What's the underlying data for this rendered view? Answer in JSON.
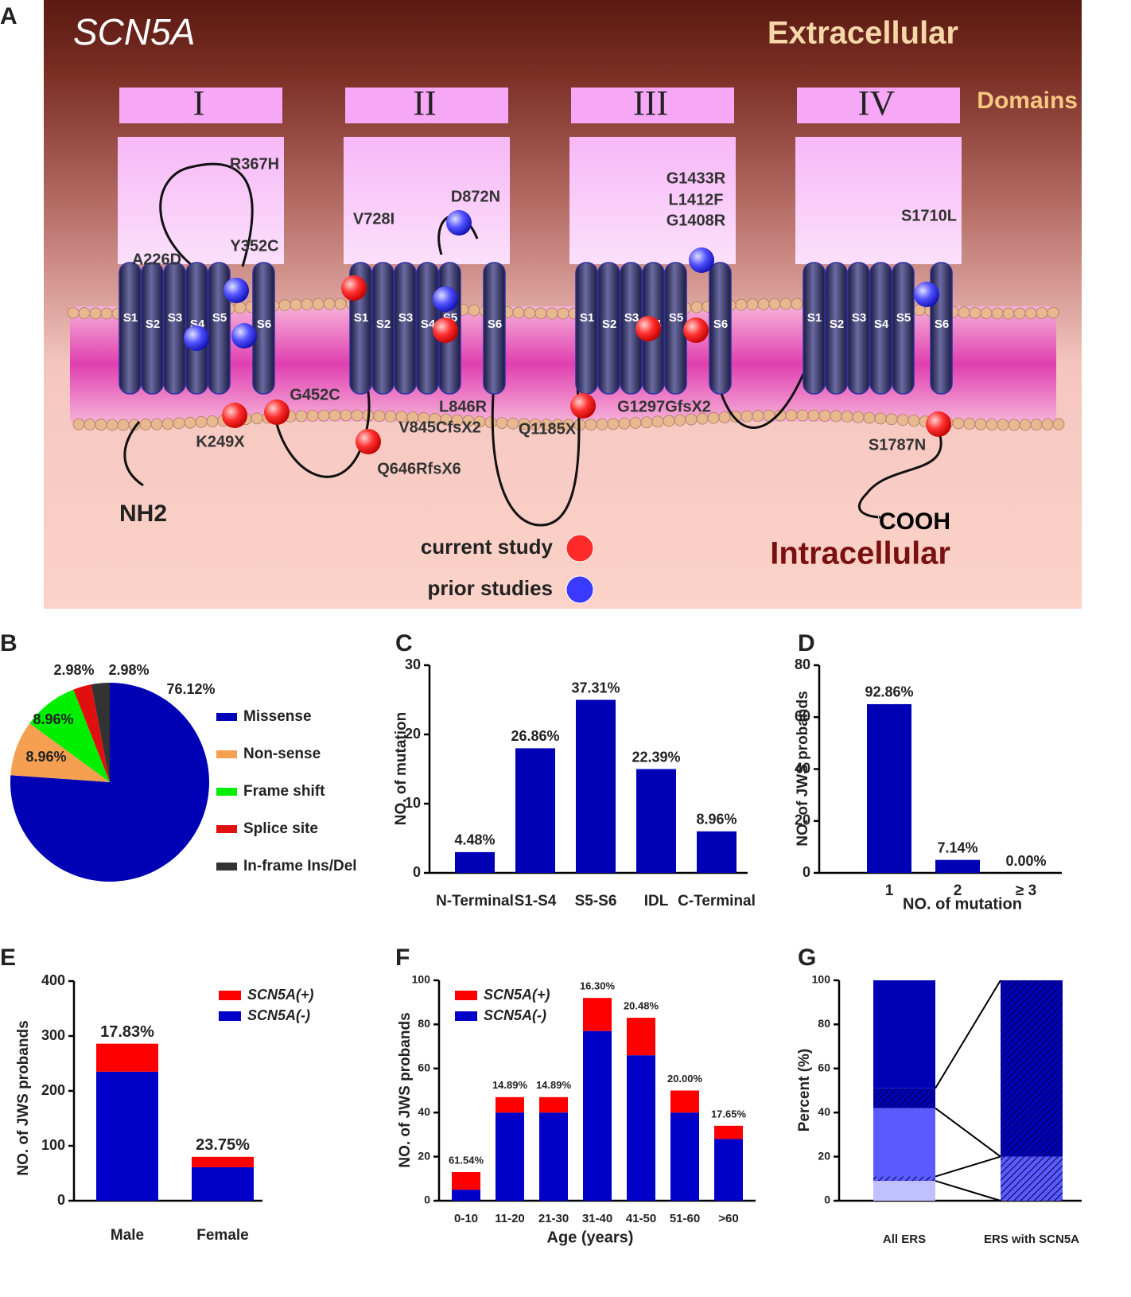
{
  "diagram": {
    "panel": "A",
    "title": "SCN5A",
    "extracellular": "Extracellular",
    "intracellular": "Intracellular",
    "domains_label": "Domains",
    "domains": [
      "I",
      "II",
      "III",
      "IV"
    ],
    "segments": [
      "S1",
      "S2",
      "S3",
      "S4",
      "S5",
      "S6"
    ],
    "n_terminus": "NH2",
    "c_terminus": "COOH",
    "mutations": [
      "R367H",
      "Y352C",
      "A226D",
      "K249X",
      "G452C",
      "V728I",
      "D872N",
      "L846R",
      "V845CfsX2",
      "Q646RfsX6",
      "Q1185X",
      "G1297GfsX2",
      "G1433R",
      "L1412F",
      "G1408R",
      "S1710L",
      "S1787N"
    ],
    "legend": [
      {
        "name": "current study",
        "color": "#ff2a2a"
      },
      {
        "name": "prior studies",
        "color": "#3a3aff"
      }
    ]
  },
  "chart_data": [
    {
      "type": "pie",
      "panel": "B",
      "categories": [
        "Missense",
        "Non-sense",
        "Frame shift",
        "Splice site",
        "In-frame Ins/Del"
      ],
      "values": [
        76.12,
        8.96,
        8.96,
        2.98,
        2.98
      ],
      "value_labels": [
        "76.12%",
        "8.96%",
        "8.96%",
        "2.98%",
        "2.98%"
      ],
      "colors": [
        "#0000b4",
        "#f5a050",
        "#00ee00",
        "#e01010",
        "#333333"
      ]
    },
    {
      "type": "bar",
      "panel": "C",
      "ylabel": "NO. of mutation",
      "categories": [
        "N-Terminal",
        "S1-S4",
        "S5-S6",
        "IDL",
        "C-Terminal"
      ],
      "values": [
        3,
        18,
        25,
        15,
        6
      ],
      "annotations": [
        "4.48%",
        "26.86%",
        "37.31%",
        "22.39%",
        "8.96%"
      ],
      "color": "#0000b4",
      "ylim": [
        0,
        30
      ],
      "yticks": [
        0,
        10,
        20,
        30
      ]
    },
    {
      "type": "bar",
      "panel": "D",
      "ylabel": "NO. of JWS probands",
      "xlabel": "NO. of mutation",
      "categories": [
        "1",
        "2",
        "≥ 3"
      ],
      "values": [
        65,
        5,
        0
      ],
      "annotations": [
        "92.86%",
        "7.14%",
        "0.00%"
      ],
      "color": "#0000b4",
      "ylim": [
        0,
        80
      ],
      "yticks": [
        0,
        20,
        40,
        60,
        80
      ]
    },
    {
      "type": "stacked_bar",
      "panel": "E",
      "ylabel": "NO. of JWS probands",
      "categories": [
        "Male",
        "Female"
      ],
      "series": [
        {
          "name": "SCN5A(-)",
          "color": "#0000c8",
          "values": [
            235,
            61
          ]
        },
        {
          "name": "SCN5A(+)",
          "color": "#ff0000",
          "values": [
            51,
            19
          ]
        }
      ],
      "annotations": [
        "17.83%",
        "23.75%"
      ],
      "ylim": [
        0,
        400
      ],
      "yticks": [
        0,
        100,
        200,
        300,
        400
      ]
    },
    {
      "type": "stacked_bar",
      "panel": "F",
      "ylabel": "NO. of JWS probands",
      "xlabel": "Age (years)",
      "categories": [
        "0-10",
        "11-20",
        "21-30",
        "31-40",
        "41-50",
        "51-60",
        ">60"
      ],
      "series": [
        {
          "name": "SCN5A(-)",
          "color": "#0000c8",
          "values": [
            5,
            40,
            40,
            77,
            66,
            40,
            28
          ]
        },
        {
          "name": "SCN5A(+)",
          "color": "#ff0000",
          "values": [
            8,
            7,
            7,
            15,
            17,
            10,
            6
          ]
        }
      ],
      "annotations": [
        "61.54%",
        "14.89%",
        "14.89%",
        "16.30%",
        "20.48%",
        "20.00%",
        "17.65%"
      ],
      "ylim": [
        0,
        100
      ],
      "yticks": [
        0,
        20,
        40,
        60,
        80,
        100
      ]
    },
    {
      "type": "stacked_bar",
      "panel": "G",
      "ylabel": "Percent (%)",
      "categories": [
        "All ERS",
        "ERS with SCN5A"
      ],
      "series": [
        {
          "color": "#c0c0ff",
          "values": [
            9,
            0
          ]
        },
        {
          "color": "#5a5aff",
          "hatch": true,
          "values": [
            2,
            20
          ]
        },
        {
          "color": "#5a5aff",
          "values": [
            31,
            0
          ]
        },
        {
          "color": "#0000b4",
          "hatch": true,
          "values": [
            9,
            80
          ]
        },
        {
          "color": "#0000b4",
          "values": [
            49,
            0
          ]
        }
      ],
      "connectors": true,
      "ylim": [
        0,
        100
      ],
      "yticks": [
        0,
        20,
        40,
        60,
        80,
        100
      ]
    }
  ]
}
